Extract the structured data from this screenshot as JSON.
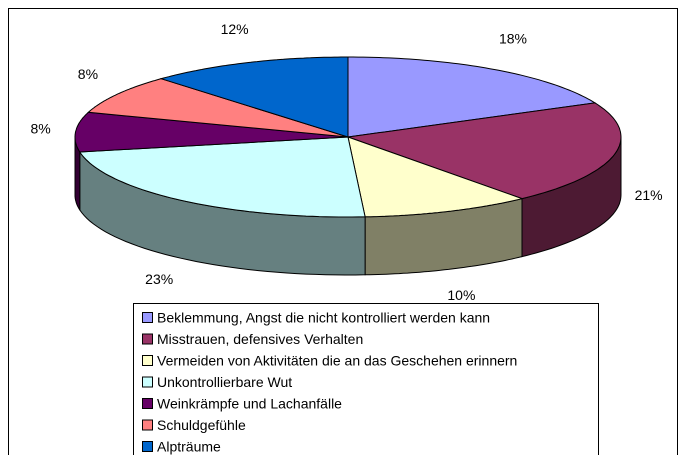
{
  "chart_data": {
    "type": "pie3d",
    "categories": [
      "Beklemmung, Angst die nicht kontrolliert werden kann",
      "Misstrauen, defensives Verhalten",
      "Vermeiden von Aktivitäten die an das Geschehen erinnern",
      "Unkontrollierbare Wut",
      "Weinkrämpfe und Lachanfälle",
      "Schuldgefühle",
      "Alpträume"
    ],
    "values": [
      18,
      21,
      10,
      23,
      8,
      8,
      12
    ],
    "value_labels": [
      "18%",
      "21%",
      "10%",
      "23%",
      "8%",
      "8%",
      "12%"
    ],
    "colors": [
      "#9999ff",
      "#993366",
      "#ffffcc",
      "#ccffff",
      "#660066",
      "#ff8080",
      "#0066cc"
    ],
    "legend": "bottom"
  }
}
